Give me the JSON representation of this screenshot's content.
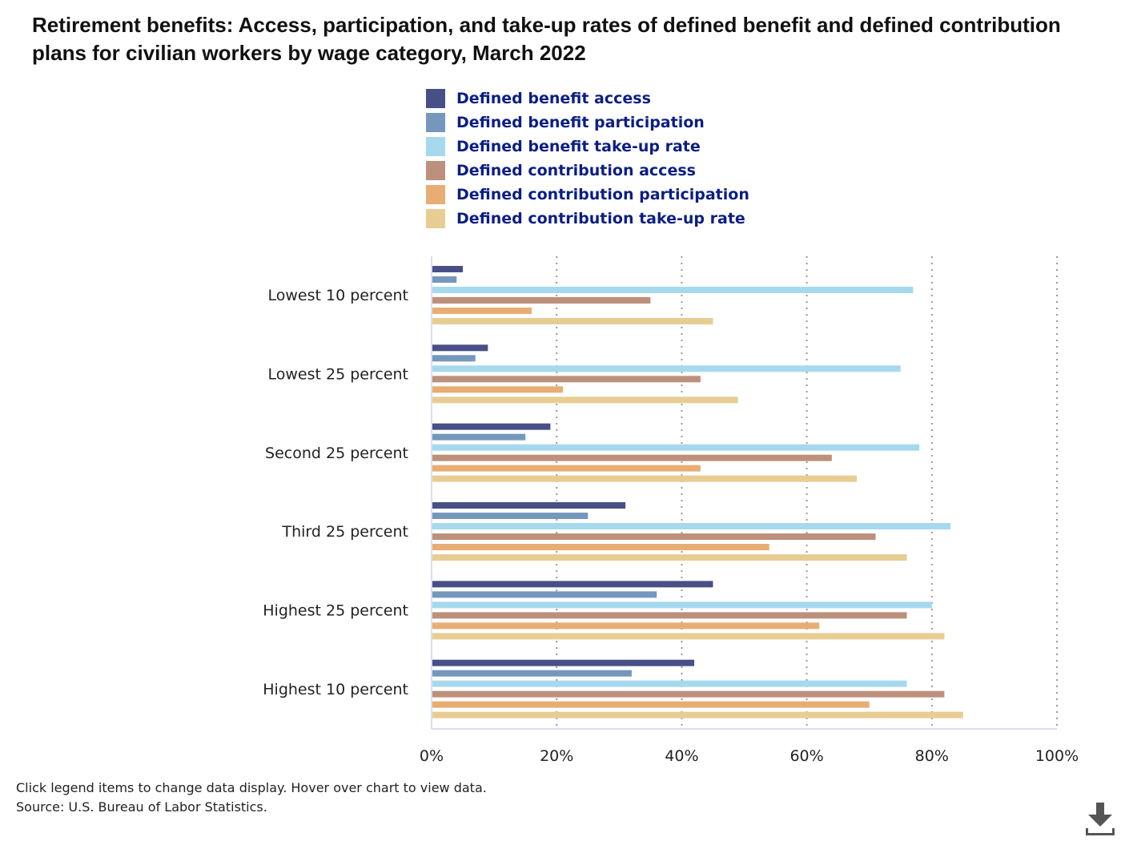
{
  "title": "Retirement benefits: Access, participation, and take-up rates of defined benefit and defined contribution plans for civilian workers by wage category, March 2022",
  "footnote": {
    "instructions": "Click legend items to change data display. Hover over chart to view data.",
    "source": "Source: U.S. Bureau of Labor Statistics."
  },
  "download_icon": "download-icon",
  "chart_data": {
    "type": "bar",
    "orientation": "horizontal",
    "title": "Retirement benefits: Access, participation, and take-up rates of defined benefit and defined contribution plans for civilian workers by wage category, March 2022",
    "xlabel": "",
    "ylabel": "",
    "xlim": [
      0,
      100
    ],
    "x_ticks": [
      "0%",
      "20%",
      "40%",
      "60%",
      "80%",
      "100%"
    ],
    "grid": "vertical dotted",
    "legend_position": "top",
    "categories": [
      "Lowest 10 percent",
      "Lowest 25 percent",
      "Second 25 percent",
      "Third 25 percent",
      "Highest 25 percent",
      "Highest 10 percent"
    ],
    "series": [
      {
        "name": "Defined benefit access",
        "color": "#484f86",
        "values": [
          5,
          9,
          19,
          31,
          45,
          42
        ]
      },
      {
        "name": "Defined benefit participation",
        "color": "#7597bd",
        "values": [
          4,
          7,
          15,
          25,
          36,
          32
        ]
      },
      {
        "name": "Defined benefit take-up rate",
        "color": "#a6d9ee",
        "values": [
          77,
          75,
          78,
          83,
          80,
          76
        ]
      },
      {
        "name": "Defined contribution access",
        "color": "#bd907c",
        "values": [
          35,
          43,
          64,
          71,
          76,
          82
        ]
      },
      {
        "name": "Defined contribution participation",
        "color": "#e8ad73",
        "values": [
          16,
          21,
          43,
          54,
          62,
          70
        ]
      },
      {
        "name": "Defined contribution take-up rate",
        "color": "#e8cd93",
        "values": [
          45,
          49,
          68,
          76,
          82,
          85
        ]
      }
    ]
  }
}
